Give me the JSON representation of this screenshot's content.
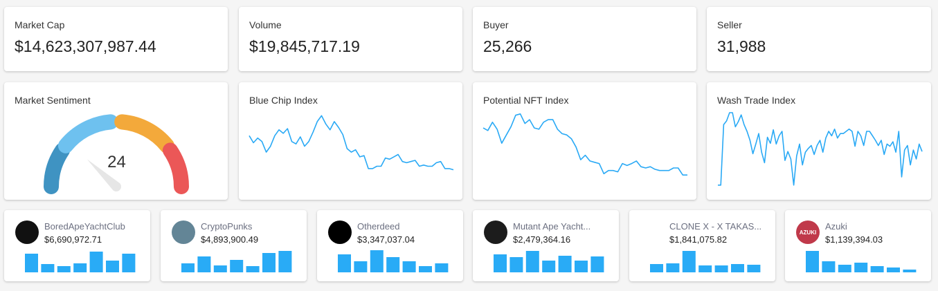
{
  "stats": [
    {
      "label": "Market Cap",
      "value": "$14,623,307,987.44"
    },
    {
      "label": "Volume",
      "value": "$19,845,717.19"
    },
    {
      "label": "Buyer",
      "value": "25,266"
    },
    {
      "label": "Seller",
      "value": "31,988"
    }
  ],
  "sentiment": {
    "label": "Market Sentiment",
    "value": "24",
    "score": 24,
    "segment_colors": [
      "#3f93c2",
      "#6ec1ef",
      "#f3a93b",
      "#eb5757"
    ],
    "needle_color": "#e6e6e6"
  },
  "chart_data": [
    {
      "type": "line",
      "title": "Blue Chip Index",
      "color": "#29a9f5",
      "values": [
        62,
        50,
        58,
        52,
        34,
        44,
        62,
        72,
        66,
        74,
        52,
        48,
        60,
        44,
        52,
        68,
        86,
        96,
        82,
        72,
        86,
        76,
        64,
        40,
        34,
        38,
        26,
        28,
        6,
        6,
        10,
        10,
        24,
        22,
        26,
        30,
        18,
        16,
        18,
        20,
        10,
        12,
        10,
        10,
        16,
        18,
        6,
        6,
        4
      ]
    },
    {
      "type": "line",
      "title": "Potential NFT Index",
      "color": "#29a9f5",
      "values": [
        76,
        72,
        85,
        74,
        52,
        65,
        78,
        96,
        98,
        83,
        89,
        76,
        74,
        85,
        89,
        89,
        74,
        67,
        65,
        59,
        46,
        26,
        33,
        24,
        22,
        20,
        4,
        9,
        9,
        7,
        20,
        17,
        20,
        24,
        15,
        13,
        15,
        11,
        9,
        9,
        9,
        13,
        13,
        2,
        2
      ]
    },
    {
      "type": "line",
      "title": "Wash Trade Index",
      "color": "#29a9f5",
      "values": [
        3,
        3,
        84,
        89,
        100,
        100,
        81,
        88,
        97,
        84,
        75,
        63,
        45,
        58,
        72,
        47,
        33,
        67,
        59,
        77,
        58,
        69,
        75,
        36,
        48,
        38,
        3,
        42,
        58,
        30,
        47,
        52,
        56,
        44,
        56,
        63,
        47,
        66,
        75,
        69,
        78,
        66,
        72,
        72,
        75,
        78,
        75,
        55,
        75,
        69,
        56,
        75,
        75,
        69,
        63,
        56,
        63,
        44,
        58,
        55,
        61,
        47,
        75,
        14,
        50,
        56,
        30,
        50,
        38,
        58,
        48
      ]
    },
    {
      "type": "bar",
      "title": "BoredApeYachtClub",
      "values": [
        27,
        12,
        9,
        13,
        30,
        17,
        27
      ]
    },
    {
      "type": "bar",
      "title": "CryptoPunks",
      "values": [
        13,
        23,
        10,
        18,
        9,
        28,
        31
      ]
    },
    {
      "type": "bar",
      "title": "Otherdeed",
      "values": [
        26,
        16,
        32,
        22,
        16,
        9,
        13
      ]
    },
    {
      "type": "bar",
      "title": "Mutant Ape Yacht...",
      "values": [
        26,
        22,
        31,
        17,
        24,
        17,
        23
      ]
    },
    {
      "type": "bar",
      "title": "CLONE X - X TAKAS...",
      "values": [
        12,
        13,
        31,
        10,
        10,
        12,
        11
      ]
    },
    {
      "type": "bar",
      "title": "Azuki",
      "values": [
        31,
        16,
        11,
        14,
        9,
        7,
        4
      ]
    }
  ],
  "collections": [
    {
      "name": "BoredApeYachtClub",
      "value": "$6,690,972.71",
      "avatar_color": "#111111",
      "avatar_text": ""
    },
    {
      "name": "CryptoPunks",
      "value": "$4,893,900.49",
      "avatar_color": "#638596",
      "avatar_text": ""
    },
    {
      "name": "Otherdeed",
      "value": "$3,347,037.04",
      "avatar_color": "#000000",
      "avatar_text": ""
    },
    {
      "name": "Mutant Ape Yacht...",
      "value": "$2,479,364.16",
      "avatar_color": "#1c1c1c",
      "avatar_text": ""
    },
    {
      "name": "CLONE X - X TAKAS...",
      "value": "$1,841,075.82",
      "avatar_color": "#ffffff",
      "avatar_text": ""
    },
    {
      "name": "Azuki",
      "value": "$1,139,394.03",
      "avatar_color": "#c0394a",
      "avatar_text": "AZUKI"
    }
  ],
  "bar_color": "#29abf6"
}
